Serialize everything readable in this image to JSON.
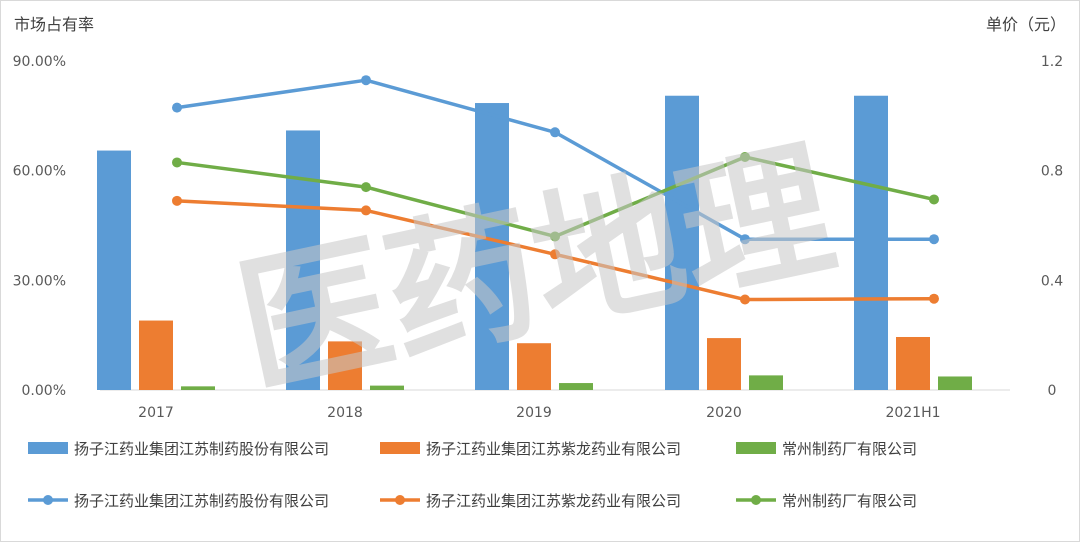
{
  "chart_data": {
    "type": "bar+line",
    "y_left_label": "市场占有率",
    "y_right_label": "单价（元）",
    "categories": [
      "2017",
      "2018",
      "2019",
      "2020",
      "2021H1"
    ],
    "y_left_ticks": [
      "0.00%",
      "30.00%",
      "60.00%",
      "90.00%"
    ],
    "y_left_lim": [
      0,
      90
    ],
    "y_right_ticks": [
      "0",
      "0.4",
      "0.8",
      "1.2"
    ],
    "y_right_lim": [
      0,
      1.2
    ],
    "bar_series": [
      {
        "name": "扬子江药业集团江苏制药股份有限公司",
        "color": "#5B9BD5",
        "values": [
          65.5,
          71.0,
          78.5,
          80.5,
          80.5
        ]
      },
      {
        "name": "扬子江药业集团江苏紫龙药业有限公司",
        "color": "#ED7D31",
        "values": [
          19.0,
          13.3,
          12.8,
          14.2,
          14.5
        ]
      },
      {
        "name": "常州制药厂有限公司",
        "color": "#70AD47",
        "values": [
          1.0,
          1.2,
          1.9,
          4.0,
          3.7
        ]
      }
    ],
    "line_series": [
      {
        "name": "扬子江药业集团江苏制药股份有限公司",
        "color": "#5B9BD5",
        "values": [
          1.03,
          1.13,
          0.94,
          0.55,
          0.55
        ]
      },
      {
        "name": "扬子江药业集团江苏紫龙药业有限公司",
        "color": "#ED7D31",
        "values": [
          0.69,
          0.655,
          0.495,
          0.33,
          0.333
        ]
      },
      {
        "name": "常州制药厂有限公司",
        "color": "#70AD47",
        "values": [
          0.83,
          0.74,
          0.56,
          0.85,
          0.695
        ]
      }
    ],
    "grid": false,
    "legend": "bottom"
  },
  "watermark": "医药地理"
}
